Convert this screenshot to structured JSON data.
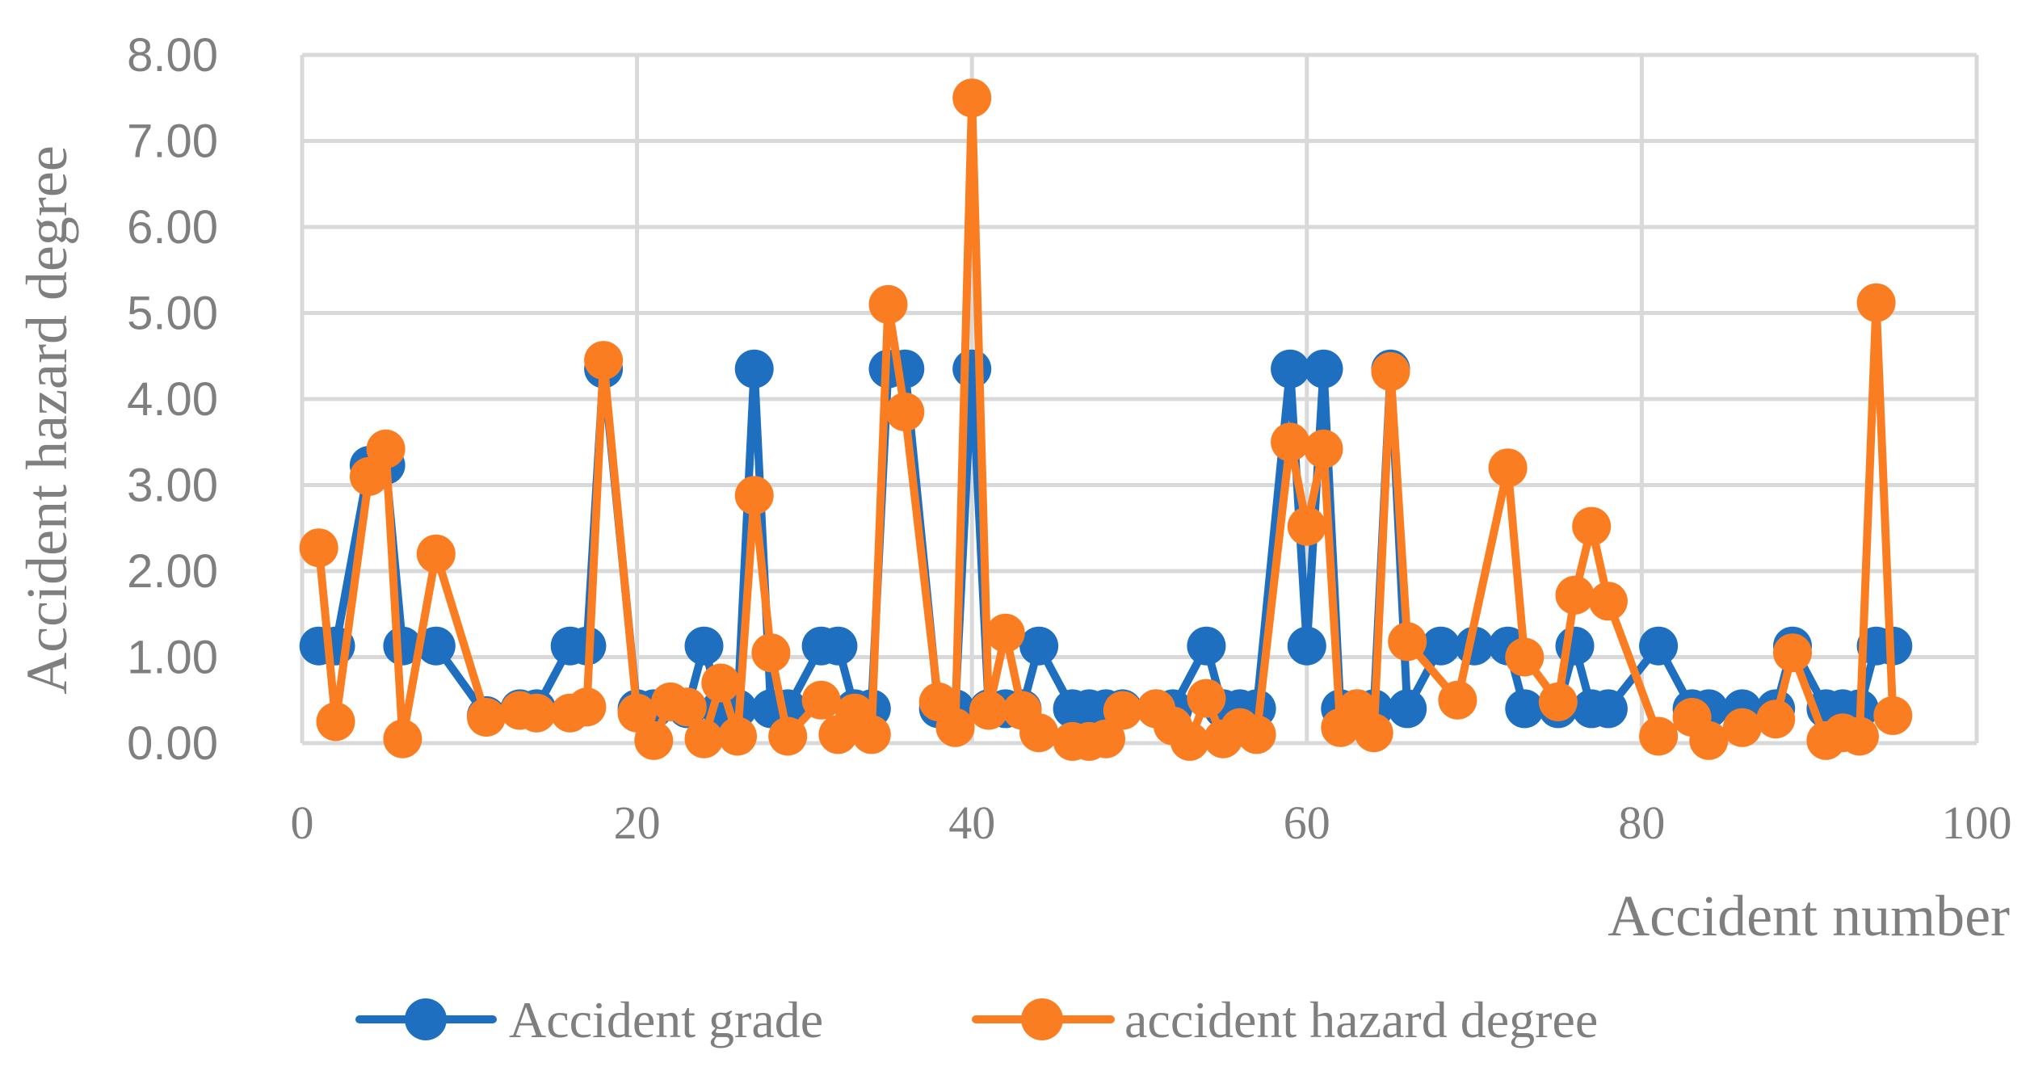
{
  "chart_data": {
    "type": "scatter",
    "xlabel": "Accident number",
    "ylabel": "Accident hazard degree",
    "xlim": [
      0,
      100
    ],
    "ylim": [
      0,
      8
    ],
    "xticks": [
      0,
      20,
      40,
      60,
      80,
      100
    ],
    "yticks": [
      "0.00",
      "1.00",
      "2.00",
      "3.00",
      "4.00",
      "5.00",
      "6.00",
      "7.00",
      "8.00"
    ],
    "grid": true,
    "legend_position": "bottom",
    "series": [
      {
        "name": "Accident grade",
        "color": "#1f6fc1",
        "points": [
          [
            1,
            1.13
          ],
          [
            2,
            1.13
          ],
          [
            4,
            3.23
          ],
          [
            5,
            3.23
          ],
          [
            6,
            1.13
          ],
          [
            8,
            1.13
          ],
          [
            11,
            0.32
          ],
          [
            13,
            0.4
          ],
          [
            14,
            0.4
          ],
          [
            16,
            1.13
          ],
          [
            17,
            1.13
          ],
          [
            18,
            4.35
          ],
          [
            20,
            0.4
          ],
          [
            21,
            0.4
          ],
          [
            23,
            0.4
          ],
          [
            24,
            1.13
          ],
          [
            25,
            0.4
          ],
          [
            26,
            0.4
          ],
          [
            27,
            4.35
          ],
          [
            28,
            0.4
          ],
          [
            29,
            0.4
          ],
          [
            31,
            1.13
          ],
          [
            32,
            1.13
          ],
          [
            33,
            0.4
          ],
          [
            34,
            0.4
          ],
          [
            35,
            4.35
          ],
          [
            36,
            4.35
          ],
          [
            38,
            0.4
          ],
          [
            39,
            0.4
          ],
          [
            40,
            4.35
          ],
          [
            41,
            0.4
          ],
          [
            42,
            0.4
          ],
          [
            43,
            0.4
          ],
          [
            44,
            1.13
          ],
          [
            46,
            0.4
          ],
          [
            47,
            0.4
          ],
          [
            48,
            0.4
          ],
          [
            49,
            0.4
          ],
          [
            51,
            0.4
          ],
          [
            52,
            0.4
          ],
          [
            54,
            1.13
          ],
          [
            55,
            0.4
          ],
          [
            56,
            0.4
          ],
          [
            57,
            0.4
          ],
          [
            59,
            4.35
          ],
          [
            60,
            1.13
          ],
          [
            61,
            4.35
          ],
          [
            62,
            0.4
          ],
          [
            63,
            0.4
          ],
          [
            64,
            0.4
          ],
          [
            65,
            4.35
          ],
          [
            66,
            0.4
          ],
          [
            68,
            1.13
          ],
          [
            70,
            1.13
          ],
          [
            72,
            1.13
          ],
          [
            73,
            0.4
          ],
          [
            75,
            0.4
          ],
          [
            76,
            1.13
          ],
          [
            77,
            0.4
          ],
          [
            78,
            0.4
          ],
          [
            81,
            1.13
          ],
          [
            83,
            0.4
          ],
          [
            84,
            0.4
          ],
          [
            86,
            0.4
          ],
          [
            88,
            0.4
          ],
          [
            89,
            1.13
          ],
          [
            91,
            0.4
          ],
          [
            92,
            0.4
          ],
          [
            93,
            0.4
          ],
          [
            94,
            1.13
          ],
          [
            95,
            1.13
          ]
        ]
      },
      {
        "name": "accident hazard degree",
        "color": "#fb7d22",
        "points": [
          [
            1,
            2.27
          ],
          [
            2,
            0.25
          ],
          [
            4,
            3.1
          ],
          [
            5,
            3.42
          ],
          [
            6,
            0.05
          ],
          [
            8,
            2.2
          ],
          [
            11,
            0.3
          ],
          [
            13,
            0.38
          ],
          [
            14,
            0.35
          ],
          [
            16,
            0.35
          ],
          [
            17,
            0.42
          ],
          [
            18,
            4.45
          ],
          [
            20,
            0.35
          ],
          [
            21,
            0.03
          ],
          [
            22,
            0.48
          ],
          [
            23,
            0.42
          ],
          [
            24,
            0.05
          ],
          [
            25,
            0.7
          ],
          [
            26,
            0.08
          ],
          [
            27,
            2.88
          ],
          [
            28,
            1.05
          ],
          [
            29,
            0.08
          ],
          [
            31,
            0.5
          ],
          [
            32,
            0.1
          ],
          [
            33,
            0.35
          ],
          [
            34,
            0.1
          ],
          [
            35,
            5.1
          ],
          [
            36,
            3.85
          ],
          [
            38,
            0.48
          ],
          [
            39,
            0.18
          ],
          [
            40,
            7.5
          ],
          [
            41,
            0.38
          ],
          [
            42,
            1.28
          ],
          [
            43,
            0.38
          ],
          [
            44,
            0.12
          ],
          [
            46,
            0.02
          ],
          [
            47,
            0.02
          ],
          [
            48,
            0.05
          ],
          [
            49,
            0.38
          ],
          [
            51,
            0.4
          ],
          [
            52,
            0.2
          ],
          [
            53,
            0.02
          ],
          [
            54,
            0.52
          ],
          [
            55,
            0.05
          ],
          [
            56,
            0.18
          ],
          [
            57,
            0.1
          ],
          [
            59,
            3.5
          ],
          [
            60,
            2.52
          ],
          [
            61,
            3.42
          ],
          [
            62,
            0.18
          ],
          [
            63,
            0.4
          ],
          [
            64,
            0.12
          ],
          [
            65,
            4.32
          ],
          [
            66,
            1.18
          ],
          [
            69,
            0.5
          ],
          [
            72,
            3.2
          ],
          [
            73,
            1.0
          ],
          [
            75,
            0.48
          ],
          [
            76,
            1.72
          ],
          [
            77,
            2.52
          ],
          [
            78,
            1.65
          ],
          [
            81,
            0.08
          ],
          [
            83,
            0.3
          ],
          [
            84,
            0.03
          ],
          [
            86,
            0.18
          ],
          [
            88,
            0.28
          ],
          [
            89,
            1.05
          ],
          [
            91,
            0.03
          ],
          [
            92,
            0.12
          ],
          [
            93,
            0.08
          ],
          [
            94,
            5.12
          ],
          [
            95,
            0.32
          ]
        ]
      }
    ]
  }
}
